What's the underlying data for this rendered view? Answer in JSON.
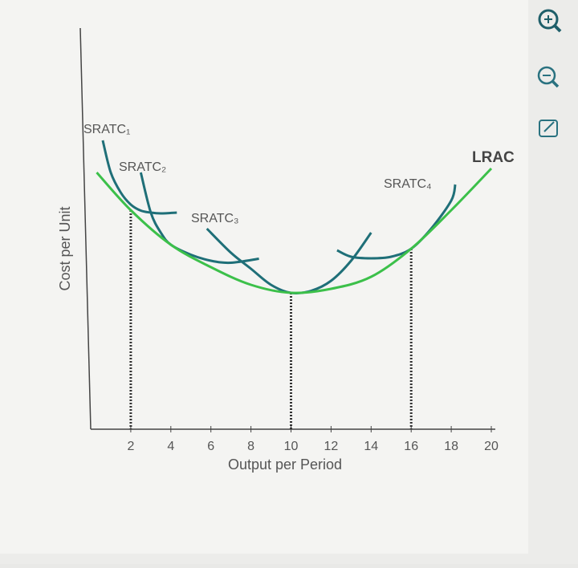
{
  "chart_data": {
    "type": "line",
    "xlabel": "Output per Period",
    "ylabel": "Cost per Unit",
    "xlim": [
      0,
      20
    ],
    "xticks": [
      2,
      4,
      6,
      8,
      10,
      12,
      14,
      16,
      18,
      20
    ],
    "ylim": [
      0,
      10
    ],
    "series": [
      {
        "name": "SRATC₁",
        "color": "#1f6f78",
        "x": [
          0.6,
          1,
          1.5,
          2,
          2.5,
          3,
          3.5,
          4.3
        ],
        "values": [
          7.2,
          6.4,
          5.9,
          5.6,
          5.45,
          5.4,
          5.38,
          5.4
        ]
      },
      {
        "name": "SRATC₂",
        "color": "#1f6f78",
        "x": [
          2.5,
          3,
          3.5,
          4,
          5,
          6,
          7,
          8.4
        ],
        "values": [
          6.4,
          5.4,
          4.9,
          4.6,
          4.35,
          4.2,
          4.15,
          4.25
        ]
      },
      {
        "name": "SRATC₃",
        "color": "#1f6f78",
        "x": [
          5.8,
          7,
          8,
          9,
          10,
          11,
          12,
          13,
          14
        ],
        "values": [
          5.0,
          4.4,
          4.0,
          3.6,
          3.4,
          3.45,
          3.7,
          4.2,
          4.9
        ]
      },
      {
        "name": "SRATC₄",
        "color": "#1f6f78",
        "x": [
          12.3,
          13,
          14,
          15,
          16,
          17,
          18,
          18.2
        ],
        "values": [
          4.46,
          4.3,
          4.26,
          4.3,
          4.5,
          5.0,
          5.7,
          6.1
        ]
      },
      {
        "name": "LRAC",
        "color": "#3cc04a",
        "x": [
          0.3,
          2,
          4,
          6,
          8,
          10,
          12,
          14,
          16,
          18,
          20
        ],
        "values": [
          6.4,
          5.46,
          4.6,
          4.04,
          3.6,
          3.4,
          3.5,
          3.8,
          4.5,
          5.46,
          6.5
        ]
      }
    ],
    "tangent_x": [
      2,
      10,
      16
    ]
  }
}
